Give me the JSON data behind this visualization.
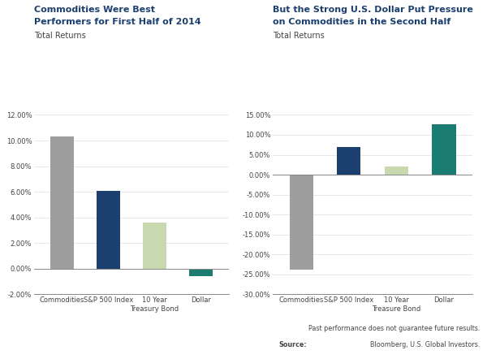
{
  "chart1": {
    "title_line1": "Commodities Were Best",
    "title_line2": "Performers for First Half of 2014",
    "subtitle": "Total Returns",
    "categories": [
      "Commodities",
      "S&P 500 Index",
      "10 Year\nTreasury Bond",
      "Dollar"
    ],
    "values": [
      0.103,
      0.0605,
      0.036,
      -0.0055
    ],
    "colors": [
      "#9E9E9E",
      "#1B3F6E",
      "#C8D9B0",
      "#1B7D72"
    ],
    "ylim": [
      -0.02,
      0.12
    ],
    "yticks": [
      -0.02,
      0.0,
      0.02,
      0.04,
      0.06,
      0.08,
      0.1,
      0.12
    ]
  },
  "chart2": {
    "title_line1": "But the Strong U.S. Dollar Put Pressure",
    "title_line2": "on Commodities in the Second Half",
    "subtitle": "Total Returns",
    "categories": [
      "Commodities",
      "S&P 500 Index",
      "10 Year\nTreasure Bond",
      "Dollar"
    ],
    "values": [
      -0.238,
      0.07,
      0.02,
      0.126
    ],
    "colors": [
      "#9E9E9E",
      "#1B3F6E",
      "#C8D9B0",
      "#1B7D72"
    ],
    "ylim": [
      -0.3,
      0.15
    ],
    "yticks": [
      -0.3,
      -0.25,
      -0.2,
      -0.15,
      -0.1,
      -0.05,
      0.0,
      0.05,
      0.1,
      0.15
    ]
  },
  "footnote1": "Past performance does not guarantee future results.",
  "footnote2": "Bloomberg, U.S. Global Investors.",
  "title_color": "#1B3F6E",
  "subtitle_color": "#444444",
  "background_color": "#FFFFFF"
}
